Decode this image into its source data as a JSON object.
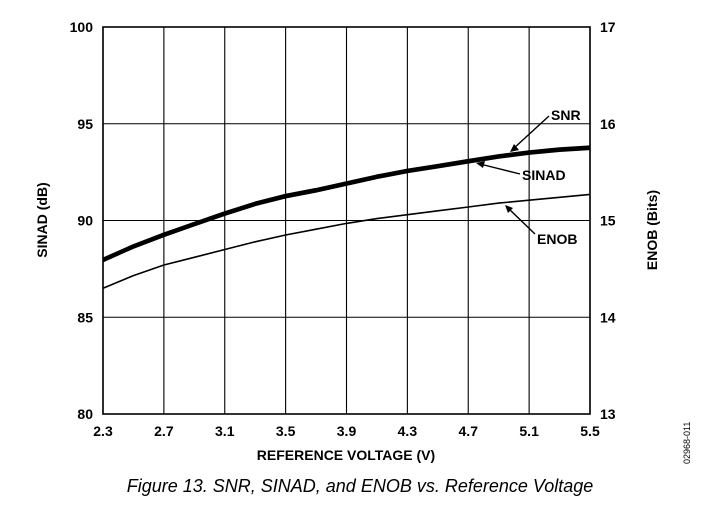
{
  "caption": "Figure 13. SNR, SINAD, and ENOB vs. Reference Voltage",
  "figure_id": "02968-011",
  "chart_data": {
    "type": "line",
    "title": "",
    "xlabel": "REFERENCE VOLTAGE (V)",
    "ylabel_left": "SINAD (dB)",
    "ylabel_right": "ENOB (Bits)",
    "xlim": [
      2.3,
      5.5
    ],
    "ylim_left": [
      80,
      100
    ],
    "ylim_right": [
      13,
      17
    ],
    "x_ticks": [
      "2.3",
      "2.7",
      "3.1",
      "3.5",
      "3.9",
      "4.3",
      "4.7",
      "5.1",
      "5.5"
    ],
    "y_ticks_left": [
      "80",
      "85",
      "90",
      "95",
      "100"
    ],
    "y_ticks_right": [
      "13",
      "14",
      "15",
      "16",
      "17"
    ],
    "grid": true,
    "x": [
      2.3,
      2.5,
      2.7,
      2.9,
      3.1,
      3.3,
      3.5,
      3.7,
      3.9,
      4.1,
      4.3,
      4.5,
      4.7,
      4.9,
      5.1,
      5.3,
      5.5
    ],
    "series": [
      {
        "name": "SNR",
        "axis": "left",
        "values": [
          88.0,
          88.7,
          89.3,
          89.85,
          90.4,
          90.9,
          91.3,
          91.6,
          91.95,
          92.3,
          92.6,
          92.85,
          93.1,
          93.35,
          93.55,
          93.7,
          93.8
        ]
      },
      {
        "name": "SINAD",
        "axis": "left",
        "values": [
          87.9,
          88.6,
          89.2,
          89.75,
          90.3,
          90.8,
          91.2,
          91.5,
          91.85,
          92.2,
          92.5,
          92.75,
          93.0,
          93.25,
          93.45,
          93.6,
          93.7
        ]
      },
      {
        "name": "ENOB",
        "axis": "right",
        "values": [
          14.3,
          14.43,
          14.54,
          14.62,
          14.7,
          14.78,
          14.85,
          14.91,
          14.97,
          15.02,
          15.06,
          15.1,
          15.14,
          15.18,
          15.21,
          15.24,
          15.27
        ]
      }
    ]
  }
}
